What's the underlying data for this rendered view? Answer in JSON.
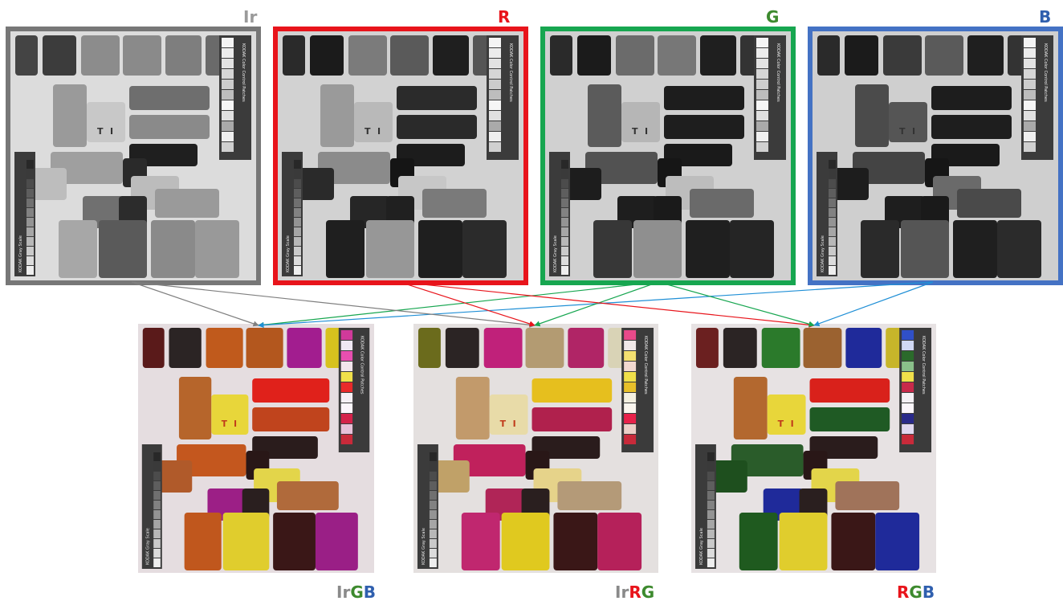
{
  "top_panels": [
    {
      "label": "Ir",
      "label_color": "#9a9a9a",
      "frame_color": "#777777"
    },
    {
      "label": "R",
      "label_color": "#e8141b",
      "frame_color": "#e8141b"
    },
    {
      "label": "G",
      "label_color": "#3d8a2e",
      "frame_color": "#17a650"
    },
    {
      "label": "B",
      "label_color": "#2f5fae",
      "frame_color": "#4472c4"
    }
  ],
  "bottom_panels": [
    {
      "label_parts": [
        {
          "text": "Ir",
          "color": "#8a8a8a"
        },
        {
          "text": "G",
          "color": "#3d8a2e"
        },
        {
          "text": "B",
          "color": "#2f5fae"
        }
      ]
    },
    {
      "label_parts": [
        {
          "text": "Ir",
          "color": "#8a8a8a"
        },
        {
          "text": "R",
          "color": "#e8141b"
        },
        {
          "text": "G",
          "color": "#3d8a2e"
        }
      ]
    },
    {
      "label_parts": [
        {
          "text": "R",
          "color": "#e8141b"
        },
        {
          "text": "G",
          "color": "#3d8a2e"
        },
        {
          "text": "B",
          "color": "#2f5fae"
        }
      ]
    }
  ],
  "arrow_colors": {
    "Ir": "#7f7f7f",
    "R": "#e8141b",
    "G": "#17a650",
    "B": "#1f8fd6"
  },
  "mappings": [
    {
      "from": "Ir",
      "to": "IrGB"
    },
    {
      "from": "G",
      "to": "IrGB"
    },
    {
      "from": "B",
      "to": "IrGB"
    },
    {
      "from": "Ir",
      "to": "IrRG"
    },
    {
      "from": "R",
      "to": "IrRG"
    },
    {
      "from": "G",
      "to": "IrRG"
    },
    {
      "from": "R",
      "to": "RGB"
    },
    {
      "from": "G",
      "to": "RGB"
    },
    {
      "from": "B",
      "to": "RGB"
    }
  ],
  "chart_text": {
    "color_patches": "KODAK Color Control Patches",
    "gray_scale": "KODAK Gray Scale",
    "letter_t": "T",
    "letter_i": "I"
  }
}
